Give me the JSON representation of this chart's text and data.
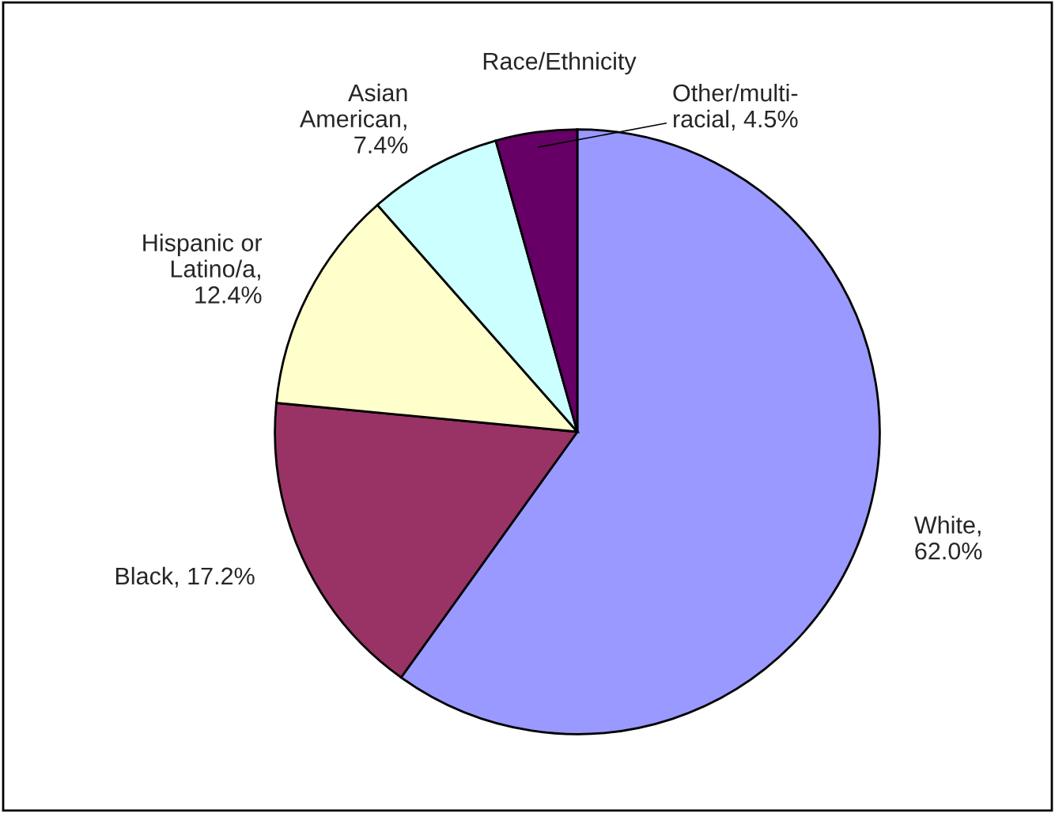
{
  "chart_data": {
    "type": "pie",
    "title": "Race/Ethnicity",
    "categories": [
      "White,\n62.0%",
      "Black, 17.2%",
      "Hispanic or\nLatino/a,\n12.4%",
      "Asian\nAmerican,\n7.4%",
      "Other/multi-\nracial, 4.5%"
    ],
    "values": [
      62.0,
      17.2,
      12.4,
      7.4,
      4.5
    ],
    "colors": [
      "#9999ff",
      "#993366",
      "#ffffcc",
      "#ccffff",
      "#660066"
    ],
    "legend": false
  }
}
